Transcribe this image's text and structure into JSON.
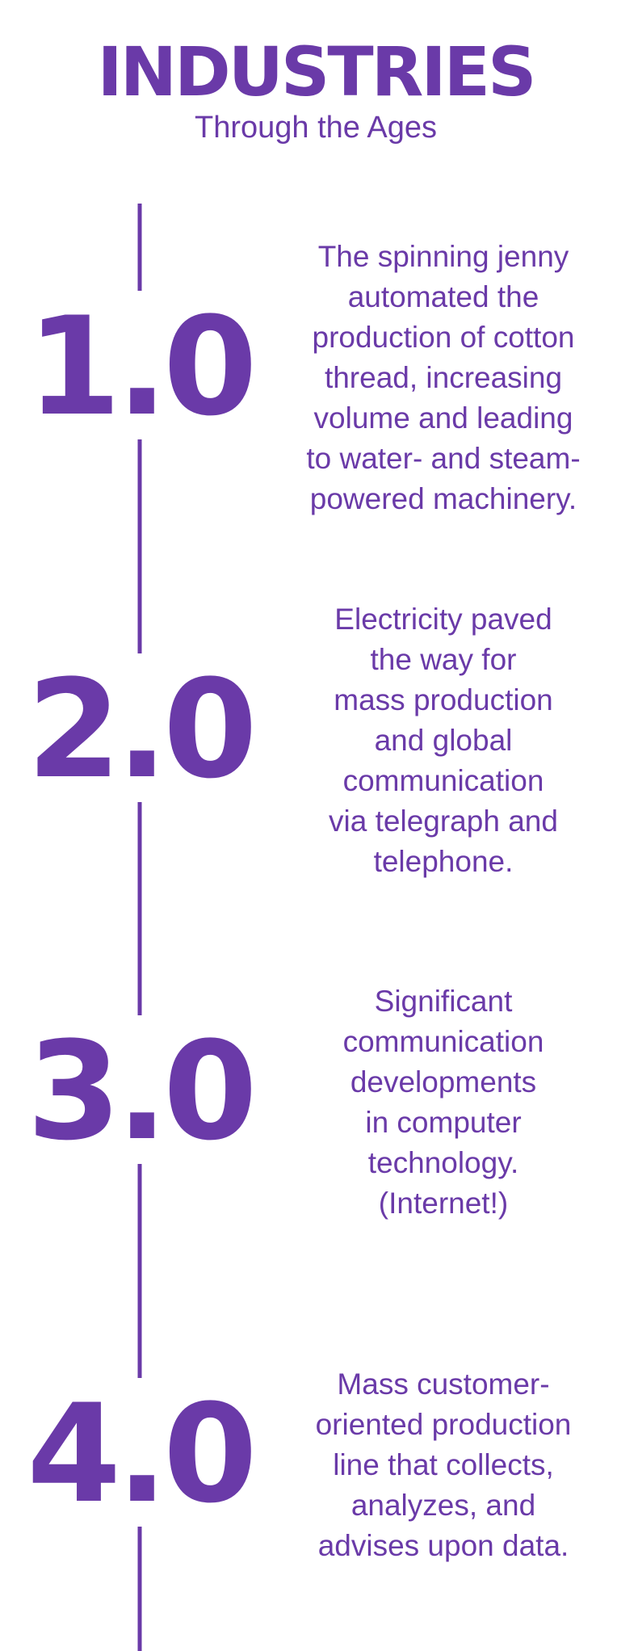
{
  "header": {
    "title": "INDUSTRIES",
    "subtitle": "Through the Ages"
  },
  "items": [
    {
      "number": "1.0",
      "lines": [
        "The spinning jenny",
        "automated the",
        "production of cotton",
        "thread, increasing",
        "volume and leading",
        "to water- and steam-",
        "powered machinery."
      ]
    },
    {
      "number": "2.0",
      "lines": [
        "Electricity paved",
        "the way for",
        "mass production",
        "and global",
        "communication",
        "via telegraph and",
        "telephone."
      ]
    },
    {
      "number": "3.0",
      "lines": [
        "Significant",
        "communication",
        "developments",
        "in computer",
        "technology.",
        "(Internet!)"
      ]
    },
    {
      "number": "4.0",
      "lines": [
        "Mass customer-",
        "oriented production",
        "line that collects,",
        "analyzes, and",
        "advises upon data."
      ]
    }
  ]
}
